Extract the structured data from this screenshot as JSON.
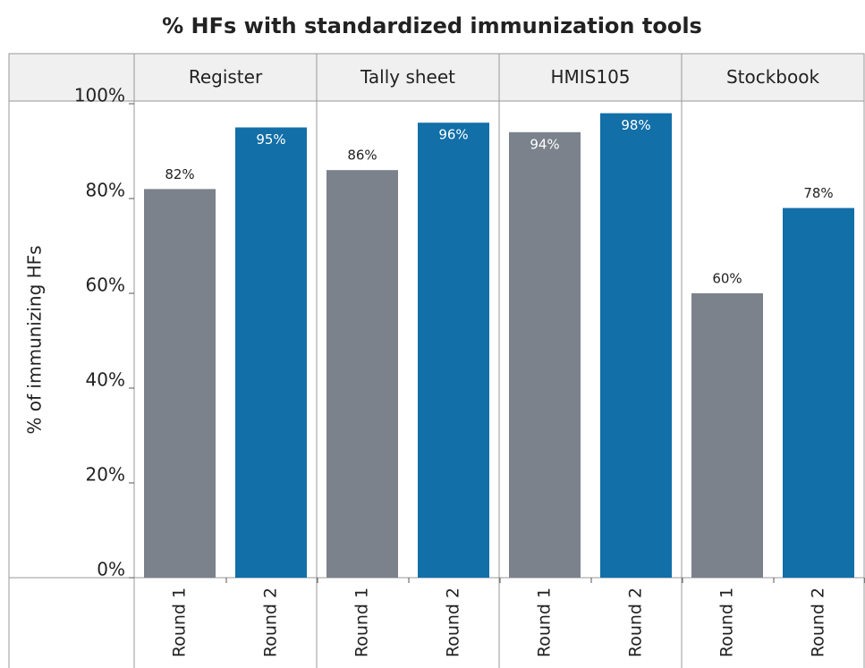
{
  "chart_data": {
    "type": "bar",
    "title": "% HFs with standardized immunization tools",
    "ylabel": "% of immunizing HFs",
    "categories": [
      "Register",
      "Tally sheet",
      "HMIS105",
      "Stockbook"
    ],
    "series": [
      {
        "name": "Round 1",
        "color": "#7b828c",
        "values": [
          82,
          86,
          94,
          60
        ],
        "value_labels": [
          "82%",
          "86%",
          "94%",
          "60%"
        ]
      },
      {
        "name": "Round 2",
        "color": "#126fa8",
        "values": [
          95,
          96,
          98,
          78
        ],
        "value_labels": [
          "95%",
          "96%",
          "98%",
          "78%"
        ]
      }
    ],
    "ylim": [
      0,
      100
    ],
    "yticks": [
      {
        "value": 0,
        "label": "0%"
      },
      {
        "value": 20,
        "label": "20%"
      },
      {
        "value": 40,
        "label": "40%"
      },
      {
        "value": 60,
        "label": "60%"
      },
      {
        "value": 80,
        "label": "80%"
      },
      {
        "value": 100,
        "label": "100%"
      }
    ]
  }
}
